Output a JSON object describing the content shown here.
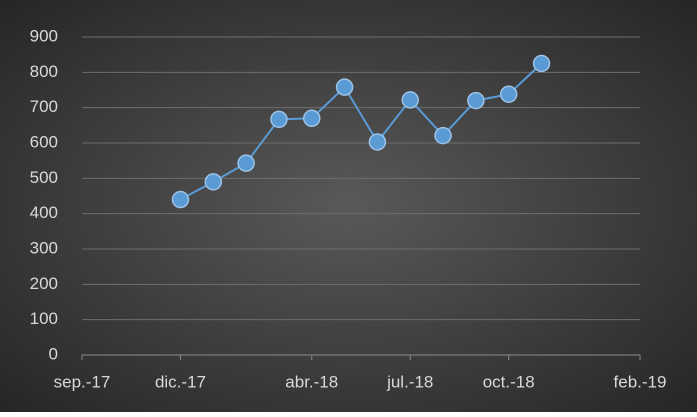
{
  "chart_data": {
    "type": "line",
    "x": [
      "2017-12",
      "2018-01",
      "2018-02",
      "2018-03",
      "2018-04",
      "2018-05",
      "2018-06",
      "2018-07",
      "2018-08",
      "2018-09",
      "2018-10",
      "2018-11"
    ],
    "series": [
      {
        "color": "#5b9bd5",
        "values": [
          440,
          490,
          543,
          667,
          670,
          758,
          603,
          722,
          621,
          720,
          738,
          825
        ]
      }
    ],
    "xlim": [
      "2017-09",
      "2019-02"
    ],
    "xticks": [
      {
        "value": "2017-09",
        "label": "sep.-17"
      },
      {
        "value": "2017-12",
        "label": "dic.-17"
      },
      {
        "value": "2018-04",
        "label": "abr.-18"
      },
      {
        "value": "2018-07",
        "label": "jul.-18"
      },
      {
        "value": "2018-10",
        "label": "oct.-18"
      },
      {
        "value": "2019-02",
        "label": "feb.-19"
      }
    ],
    "ylim": [
      0,
      900
    ],
    "yticks": [
      0,
      100,
      200,
      300,
      400,
      500,
      600,
      700,
      800,
      900
    ],
    "grid": true
  }
}
